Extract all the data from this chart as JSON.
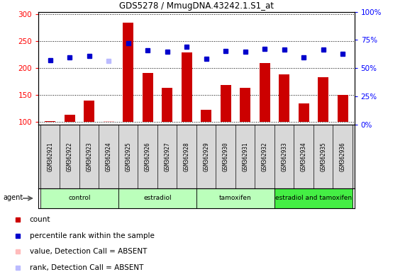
{
  "title": "GDS5278 / MmugDNA.43242.1.S1_at",
  "samples": [
    "GSM362921",
    "GSM362922",
    "GSM362923",
    "GSM362924",
    "GSM362925",
    "GSM362926",
    "GSM362927",
    "GSM362928",
    "GSM362929",
    "GSM362930",
    "GSM362931",
    "GSM362932",
    "GSM362933",
    "GSM362934",
    "GSM362935",
    "GSM362936"
  ],
  "count_values": [
    101,
    113,
    139,
    102,
    284,
    191,
    164,
    229,
    122,
    168,
    163,
    209,
    188,
    134,
    183,
    150
  ],
  "count_absent": [
    false,
    false,
    false,
    true,
    false,
    false,
    false,
    false,
    false,
    false,
    false,
    false,
    false,
    false,
    false,
    false
  ],
  "rank_values": [
    215,
    220,
    222,
    214,
    247,
    233,
    230,
    240,
    218,
    232,
    230,
    236,
    235,
    220,
    234,
    227
  ],
  "rank_absent": [
    false,
    false,
    false,
    true,
    false,
    false,
    false,
    false,
    false,
    false,
    false,
    false,
    false,
    false,
    false,
    false
  ],
  "groups": [
    {
      "label": "control",
      "start": 0,
      "end": 3,
      "color": "#bbffbb"
    },
    {
      "label": "estradiol",
      "start": 4,
      "end": 7,
      "color": "#bbffbb"
    },
    {
      "label": "tamoxifen",
      "start": 8,
      "end": 11,
      "color": "#bbffbb"
    },
    {
      "label": "estradiol and tamoxifen",
      "start": 12,
      "end": 15,
      "color": "#44ee44"
    }
  ],
  "ylim_left": [
    95,
    305
  ],
  "ylim_right": [
    0,
    100
  ],
  "bar_color": "#cc0000",
  "bar_color_absent": "#ffbbbb",
  "rank_color": "#0000cc",
  "rank_color_absent": "#bbbbff",
  "bg_color": "#ffffff",
  "plot_bg": "#ffffff",
  "grid_color": "#000000",
  "yticks_left": [
    100,
    150,
    200,
    250,
    300
  ],
  "yticks_right": [
    0,
    25,
    50,
    75,
    100
  ],
  "ytick_labels_right": [
    "0%",
    "25%",
    "50%",
    "75%",
    "100%"
  ],
  "legend_items": [
    {
      "color": "#cc0000",
      "label": "count"
    },
    {
      "color": "#0000cc",
      "label": "percentile rank within the sample"
    },
    {
      "color": "#ffbbbb",
      "label": "value, Detection Call = ABSENT"
    },
    {
      "color": "#bbbbff",
      "label": "rank, Detection Call = ABSENT"
    }
  ]
}
